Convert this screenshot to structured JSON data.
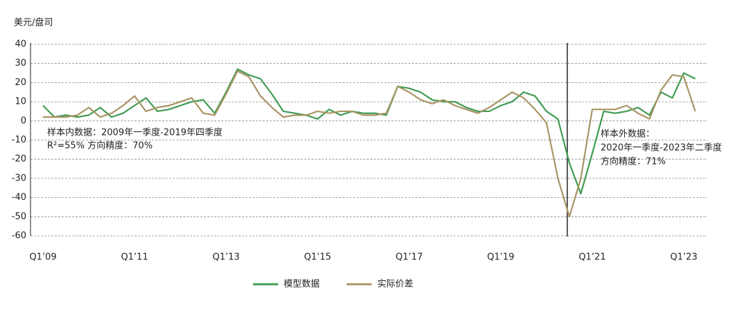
{
  "chart_data": {
    "type": "line",
    "y_label": "美元/盘司",
    "categories": [
      "Q1’09",
      null,
      null,
      null,
      null,
      null,
      null,
      null,
      "Q1’11",
      null,
      null,
      null,
      null,
      null,
      null,
      null,
      "Q1’13",
      null,
      null,
      null,
      null,
      null,
      null,
      null,
      "Q1’15",
      null,
      null,
      null,
      null,
      null,
      null,
      null,
      "Q1’17",
      null,
      null,
      null,
      null,
      null,
      null,
      null,
      "Q1’19",
      null,
      null,
      null,
      null,
      null,
      null,
      null,
      "Q1’21",
      null,
      null,
      null,
      null,
      null,
      null,
      null,
      "Q1’23",
      null
    ],
    "series": [
      {
        "name": "模型数据",
        "color": "#3f9b52",
        "values": [
          8,
          2,
          3,
          2,
          3,
          7,
          2,
          4,
          8,
          12,
          5,
          6,
          8,
          10,
          11,
          4,
          15,
          27,
          24,
          22,
          14,
          5,
          4,
          3,
          1,
          6,
          3,
          5,
          4,
          4,
          3,
          18,
          17,
          15,
          11,
          10,
          10,
          7,
          5,
          5,
          8,
          10,
          15,
          13,
          5,
          1,
          -22,
          -38,
          -17,
          5,
          4,
          5,
          7,
          3,
          15,
          12,
          25,
          22
        ]
      },
      {
        "name": "实际价差",
        "color": "#a99465",
        "values": [
          2,
          2,
          2,
          3,
          7,
          2,
          4,
          8,
          13,
          5,
          7,
          8,
          10,
          12,
          4,
          3,
          14,
          26,
          23,
          13,
          7,
          2,
          3,
          3,
          5,
          4,
          5,
          5,
          3,
          3,
          4,
          18,
          15,
          11,
          9,
          11,
          8,
          6,
          4,
          7,
          11,
          15,
          12,
          6,
          -1,
          -30,
          -50,
          -30,
          6,
          6,
          6,
          8,
          4,
          1,
          16,
          24,
          23,
          5
        ]
      }
    ],
    "ylim": [
      -60,
      40
    ],
    "yticks": [
      -60,
      -50,
      -40,
      -30,
      -20,
      -10,
      0,
      10,
      20,
      30,
      40
    ],
    "grid": true,
    "annotations_left": [
      "样本内数据：2009年一季度-2019年四季度",
      "R²=55%  方向精度：70%"
    ],
    "annotations_right": [
      "样本外数据：",
      "2020年一季度-2023年二季度",
      "方向精度：71%"
    ]
  }
}
